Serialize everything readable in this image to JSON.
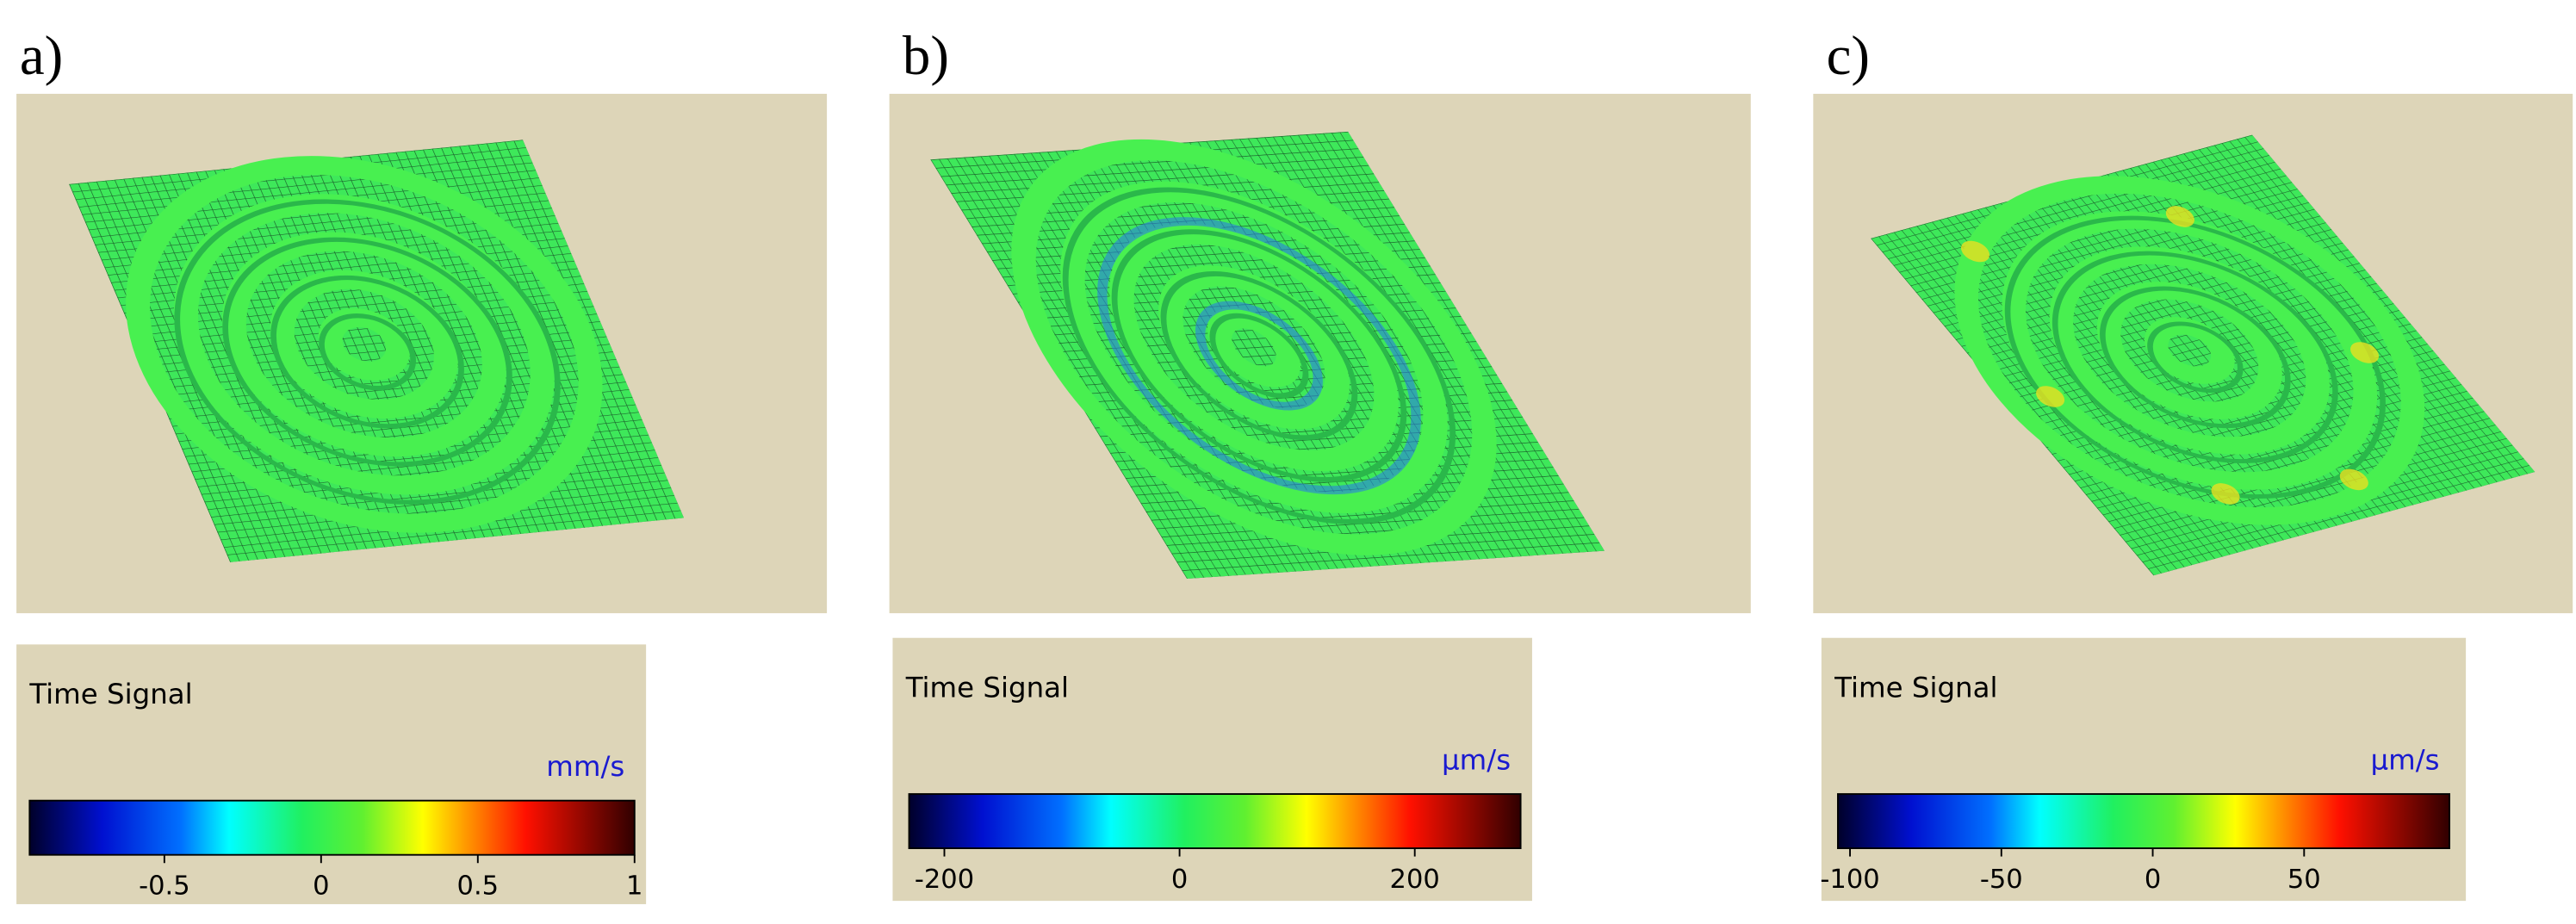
{
  "panels": [
    {
      "label": "a)",
      "legend": {
        "title": "Time Signal",
        "unit": "mm/s",
        "range": [
          -0.93,
          1.0
        ],
        "ticks": [
          -0.5,
          0,
          0.5,
          1
        ]
      }
    },
    {
      "label": "b)",
      "legend": {
        "title": "Time Signal",
        "unit": "µm/s",
        "range": [
          -230,
          290
        ],
        "ticks": [
          -200,
          0,
          200
        ]
      }
    },
    {
      "label": "c)",
      "legend": {
        "title": "Time Signal",
        "unit": "µm/s",
        "range": [
          -104,
          98
        ],
        "ticks": [
          -100,
          -50,
          0,
          50
        ]
      }
    }
  ]
}
